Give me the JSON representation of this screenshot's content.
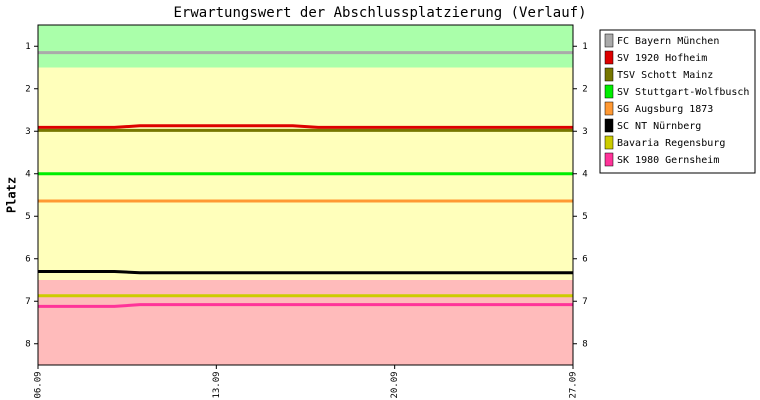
{
  "chart_data": {
    "type": "line",
    "title": "Erwartungswert der Abschlussplatzierung (Verlauf)",
    "y_label": "Platz",
    "categories": [
      "06.09",
      null,
      null,
      null,
      null,
      null,
      null,
      "13.09",
      null,
      null,
      null,
      null,
      null,
      null,
      "20.09",
      null,
      null,
      null,
      null,
      null,
      null,
      "27.09"
    ],
    "ylim": [
      0.5,
      8.5
    ],
    "y_inverted": true,
    "yticks": [
      1,
      2,
      3,
      4,
      5,
      6,
      7,
      8
    ],
    "bands": [
      {
        "from": 0.5,
        "to": 1.5,
        "color": "#aaffaa"
      },
      {
        "from": 1.5,
        "to": 6.5,
        "color": "#ffffbb"
      },
      {
        "from": 6.5,
        "to": 8.5,
        "color": "#ffbbbb"
      }
    ],
    "legend": "right",
    "series": [
      {
        "name": "FC Bayern München",
        "color": "#aaaaaa",
        "values": [
          1.15,
          1.15,
          1.15,
          1.15,
          1.15,
          1.15,
          1.15,
          1.15,
          1.15,
          1.15,
          1.15,
          1.15,
          1.15,
          1.15,
          1.15,
          1.15,
          1.15,
          1.15,
          1.15,
          1.15,
          1.15,
          1.15
        ]
      },
      {
        "name": "SV 1920 Hofheim",
        "color": "#dd0000",
        "values": [
          2.91,
          2.91,
          2.91,
          2.91,
          2.87,
          2.87,
          2.87,
          2.87,
          2.87,
          2.87,
          2.87,
          2.91,
          2.91,
          2.91,
          2.91,
          2.91,
          2.91,
          2.91,
          2.91,
          2.91,
          2.91,
          2.91
        ]
      },
      {
        "name": "TSV Schott Mainz",
        "color": "#777700",
        "values": [
          2.98,
          2.98,
          2.98,
          2.98,
          2.98,
          2.98,
          2.98,
          2.98,
          2.98,
          2.98,
          2.98,
          2.98,
          2.98,
          2.98,
          2.98,
          2.98,
          2.98,
          2.98,
          2.98,
          2.98,
          2.98,
          2.98
        ]
      },
      {
        "name": "SV Stuttgart-Wolfbusch",
        "color": "#00ee00",
        "values": [
          4.0,
          4.0,
          4.0,
          4.0,
          4.0,
          4.0,
          4.0,
          4.0,
          4.0,
          4.0,
          4.0,
          4.0,
          4.0,
          4.0,
          4.0,
          4.0,
          4.0,
          4.0,
          4.0,
          4.0,
          4.0,
          4.0
        ]
      },
      {
        "name": "SG Augsburg 1873",
        "color": "#ff9933",
        "values": [
          4.64,
          4.64,
          4.64,
          4.64,
          4.64,
          4.64,
          4.64,
          4.64,
          4.64,
          4.64,
          4.64,
          4.64,
          4.64,
          4.64,
          4.64,
          4.64,
          4.64,
          4.64,
          4.64,
          4.64,
          4.64,
          4.64
        ]
      },
      {
        "name": "SC NT Nürnberg",
        "color": "#000000",
        "values": [
          6.3,
          6.3,
          6.3,
          6.3,
          6.33,
          6.33,
          6.33,
          6.33,
          6.33,
          6.33,
          6.33,
          6.33,
          6.33,
          6.33,
          6.33,
          6.33,
          6.33,
          6.33,
          6.33,
          6.33,
          6.33,
          6.33
        ]
      },
      {
        "name": "Bavaria Regensburg",
        "color": "#cccc00",
        "values": [
          6.87,
          6.87,
          6.87,
          6.87,
          6.87,
          6.87,
          6.87,
          6.87,
          6.87,
          6.87,
          6.87,
          6.87,
          6.87,
          6.87,
          6.87,
          6.87,
          6.87,
          6.87,
          6.87,
          6.87,
          6.87,
          6.87
        ]
      },
      {
        "name": "SK 1980 Gernsheim",
        "color": "#ff3399",
        "values": [
          7.12,
          7.12,
          7.12,
          7.12,
          7.08,
          7.08,
          7.08,
          7.08,
          7.08,
          7.08,
          7.08,
          7.08,
          7.08,
          7.08,
          7.08,
          7.08,
          7.08,
          7.08,
          7.08,
          7.08,
          7.08,
          7.08
        ]
      }
    ]
  }
}
